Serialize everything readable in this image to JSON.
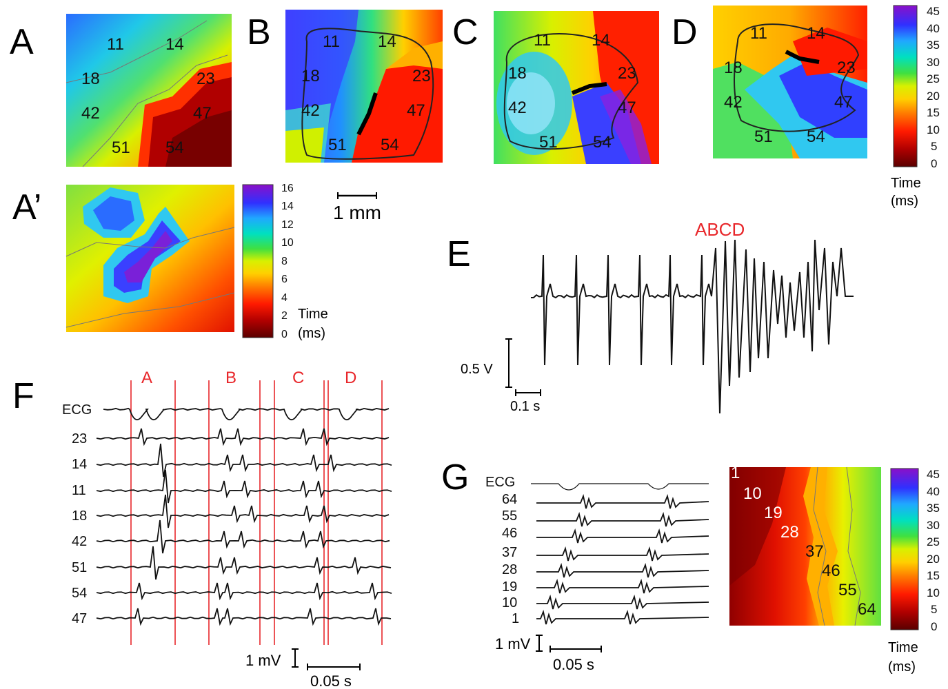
{
  "panels": {
    "A": "A",
    "A_prime": "A’",
    "B": "B",
    "C": "C",
    "D": "D",
    "E": "E",
    "F": "F",
    "G": "G"
  },
  "electrodes_map": [
    "11",
    "14",
    "18",
    "23",
    "42",
    "47",
    "51",
    "54"
  ],
  "electrodes_F": [
    "ECG",
    "23",
    "14",
    "11",
    "18",
    "42",
    "51",
    "54",
    "47"
  ],
  "electrodes_G": [
    "ECG",
    "64",
    "55",
    "46",
    "37",
    "28",
    "19",
    "10",
    "1"
  ],
  "map_G_labels": [
    "1",
    "10",
    "19",
    "28",
    "37",
    "46",
    "55",
    "64"
  ],
  "colorbar_main": {
    "ticks": [
      "45",
      "40",
      "35",
      "30",
      "25",
      "20",
      "15",
      "10",
      "5",
      "0"
    ],
    "label1": "Time",
    "label2": "(ms)"
  },
  "colorbar_aprime": {
    "ticks": [
      "16",
      "14",
      "12",
      "10",
      "8",
      "6",
      "4",
      "2",
      "0"
    ],
    "label1": "Time",
    "label2": "(ms)"
  },
  "colorbar_G": {
    "ticks": [
      "45",
      "40",
      "35",
      "30",
      "25",
      "20",
      "15",
      "10",
      "5",
      "0"
    ],
    "label1": "Time",
    "label2": "(ms)"
  },
  "scale_map": "1 mm",
  "panel_E": {
    "annotation": "ABCD",
    "v_scale": "0.5 V",
    "t_scale": "0.1 s"
  },
  "panel_F": {
    "segments": [
      "A",
      "B",
      "C",
      "D"
    ],
    "v_scale": "1 mV",
    "t_scale": "0.05 s"
  },
  "panel_G": {
    "v_scale": "1 mV",
    "t_scale": "0.05 s"
  },
  "colors": {
    "accent_red": "#e8262a",
    "trace": "#111111",
    "isochrone": "#666666"
  }
}
